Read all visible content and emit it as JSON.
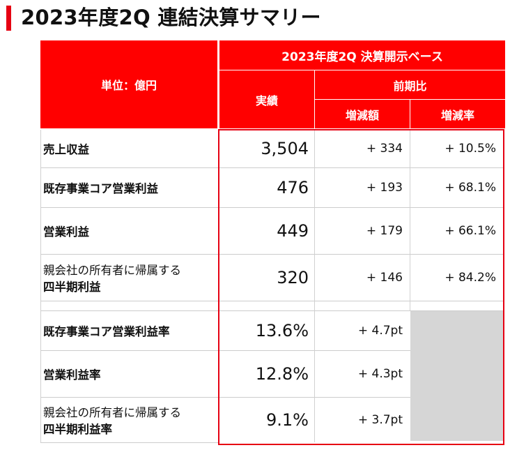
{
  "title": "2023年度2Q 連結決算サマリー",
  "header": {
    "unit": "単位：億円",
    "basis": "2023年度2Q 決算開示ベース",
    "actual": "実績",
    "yoy": "前期比",
    "change_amount": "増減額",
    "change_rate": "増減率"
  },
  "rows": [
    {
      "label": "売上収益",
      "actual": "3,504",
      "change": "+ 334",
      "rate": "+ 10.5%"
    },
    {
      "label": "既存事業コア営業利益",
      "actual": "476",
      "change": "+ 193",
      "rate": "+ 68.1%"
    },
    {
      "label": "営業利益",
      "actual": "449",
      "change": "+ 179",
      "rate": "+ 66.1%"
    },
    {
      "label_line1": "親会社の所有者に帰属する",
      "label_line2": "四半期利益",
      "actual": "320",
      "change": "+ 146",
      "rate": "+ 84.2%"
    }
  ],
  "margin_rows": [
    {
      "label": "既存事業コア営業利益率",
      "actual": "13.6%",
      "change": "+ 4.7pt"
    },
    {
      "label": "営業利益率",
      "actual": "12.8%",
      "change": "+ 4.3pt"
    },
    {
      "label_line1": "親会社の所有者に帰属する",
      "label_line2": "四半期利益率",
      "actual": "9.1%",
      "change": "+ 3.7pt"
    }
  ],
  "colors": {
    "accent": "#e60012",
    "header": "#ff0000",
    "empty_cell": "#d6d6d6"
  }
}
